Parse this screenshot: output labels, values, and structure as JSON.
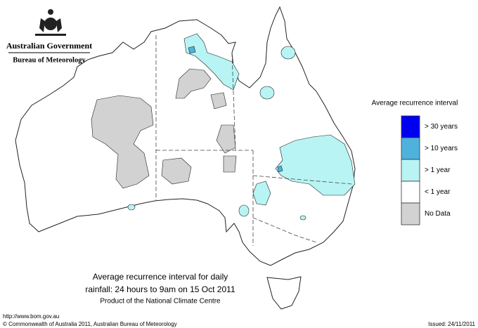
{
  "header": {
    "government": "Australian Government",
    "bureau": "Bureau of Meteorology"
  },
  "legend": {
    "title": "Average recurrence interval",
    "items": [
      {
        "label": "> 30 years",
        "color": "#0000f0"
      },
      {
        "label": "> 10 years",
        "color": "#4fb2dc"
      },
      {
        "label": "> 1 year",
        "color": "#b8f4f4"
      },
      {
        "label": "< 1 year",
        "color": "#ffffff"
      },
      {
        "label": "No Data",
        "color": "#d2d2d2"
      }
    ]
  },
  "caption": {
    "lines": [
      "Average recurrence interval for daily",
      "rainfall: 24 hours to 9am on 15 Oct 2011"
    ],
    "credit": "Product of the National Climate Centre"
  },
  "footer": {
    "url": "http://www.bom.gov.au",
    "copyright": "© Commonwealth of Australia 2011, Australian Bureau of Meteorology",
    "issued": "Issued: 24/11/2011"
  }
}
